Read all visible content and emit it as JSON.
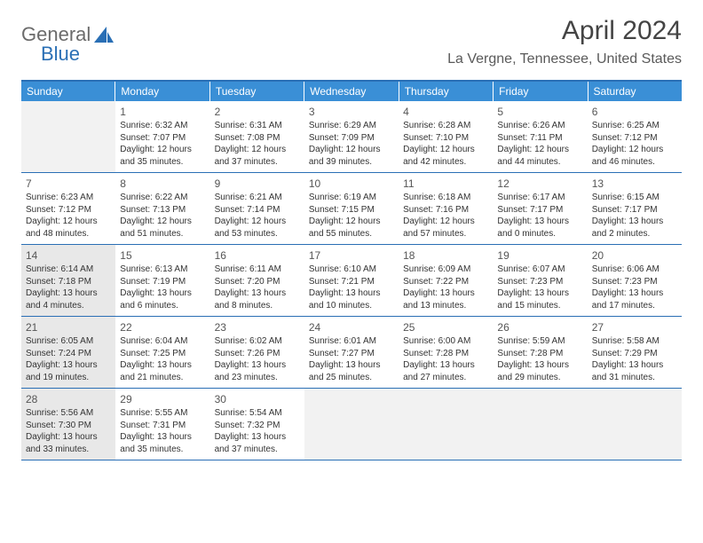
{
  "logo": {
    "part1": "General",
    "part2": "Blue"
  },
  "title": "April 2024",
  "location": "La Vergne, Tennessee, United States",
  "weekdays": [
    "Sunday",
    "Monday",
    "Tuesday",
    "Wednesday",
    "Thursday",
    "Friday",
    "Saturday"
  ],
  "colors": {
    "header_blue": "#3a8fd6",
    "border_blue": "#2a6fb5",
    "logo_gray": "#6b6b6b",
    "logo_blue": "#2a6fb5",
    "shaded": "#e8e8e8",
    "empty": "#f2f2f2",
    "text": "#333333"
  },
  "typography": {
    "title_fontsize": 30,
    "location_fontsize": 16,
    "weekday_fontsize": 12,
    "daynum_fontsize": 12,
    "body_fontsize": 10
  },
  "weeks": [
    [
      {
        "empty": true
      },
      {
        "n": "1",
        "sr": "6:32 AM",
        "ss": "7:07 PM",
        "dl1": "Daylight: 12 hours",
        "dl2": "and 35 minutes."
      },
      {
        "n": "2",
        "sr": "6:31 AM",
        "ss": "7:08 PM",
        "dl1": "Daylight: 12 hours",
        "dl2": "and 37 minutes."
      },
      {
        "n": "3",
        "sr": "6:29 AM",
        "ss": "7:09 PM",
        "dl1": "Daylight: 12 hours",
        "dl2": "and 39 minutes."
      },
      {
        "n": "4",
        "sr": "6:28 AM",
        "ss": "7:10 PM",
        "dl1": "Daylight: 12 hours",
        "dl2": "and 42 minutes."
      },
      {
        "n": "5",
        "sr": "6:26 AM",
        "ss": "7:11 PM",
        "dl1": "Daylight: 12 hours",
        "dl2": "and 44 minutes."
      },
      {
        "n": "6",
        "sr": "6:25 AM",
        "ss": "7:12 PM",
        "dl1": "Daylight: 12 hours",
        "dl2": "and 46 minutes."
      }
    ],
    [
      {
        "n": "7",
        "sr": "6:23 AM",
        "ss": "7:12 PM",
        "dl1": "Daylight: 12 hours",
        "dl2": "and 48 minutes."
      },
      {
        "n": "8",
        "sr": "6:22 AM",
        "ss": "7:13 PM",
        "dl1": "Daylight: 12 hours",
        "dl2": "and 51 minutes."
      },
      {
        "n": "9",
        "sr": "6:21 AM",
        "ss": "7:14 PM",
        "dl1": "Daylight: 12 hours",
        "dl2": "and 53 minutes."
      },
      {
        "n": "10",
        "sr": "6:19 AM",
        "ss": "7:15 PM",
        "dl1": "Daylight: 12 hours",
        "dl2": "and 55 minutes."
      },
      {
        "n": "11",
        "sr": "6:18 AM",
        "ss": "7:16 PM",
        "dl1": "Daylight: 12 hours",
        "dl2": "and 57 minutes."
      },
      {
        "n": "12",
        "sr": "6:17 AM",
        "ss": "7:17 PM",
        "dl1": "Daylight: 13 hours",
        "dl2": "and 0 minutes."
      },
      {
        "n": "13",
        "sr": "6:15 AM",
        "ss": "7:17 PM",
        "dl1": "Daylight: 13 hours",
        "dl2": "and 2 minutes."
      }
    ],
    [
      {
        "n": "14",
        "sr": "6:14 AM",
        "ss": "7:18 PM",
        "dl1": "Daylight: 13 hours",
        "dl2": "and 4 minutes.",
        "shaded": true
      },
      {
        "n": "15",
        "sr": "6:13 AM",
        "ss": "7:19 PM",
        "dl1": "Daylight: 13 hours",
        "dl2": "and 6 minutes."
      },
      {
        "n": "16",
        "sr": "6:11 AM",
        "ss": "7:20 PM",
        "dl1": "Daylight: 13 hours",
        "dl2": "and 8 minutes."
      },
      {
        "n": "17",
        "sr": "6:10 AM",
        "ss": "7:21 PM",
        "dl1": "Daylight: 13 hours",
        "dl2": "and 10 minutes."
      },
      {
        "n": "18",
        "sr": "6:09 AM",
        "ss": "7:22 PM",
        "dl1": "Daylight: 13 hours",
        "dl2": "and 13 minutes."
      },
      {
        "n": "19",
        "sr": "6:07 AM",
        "ss": "7:23 PM",
        "dl1": "Daylight: 13 hours",
        "dl2": "and 15 minutes."
      },
      {
        "n": "20",
        "sr": "6:06 AM",
        "ss": "7:23 PM",
        "dl1": "Daylight: 13 hours",
        "dl2": "and 17 minutes."
      }
    ],
    [
      {
        "n": "21",
        "sr": "6:05 AM",
        "ss": "7:24 PM",
        "dl1": "Daylight: 13 hours",
        "dl2": "and 19 minutes.",
        "shaded": true
      },
      {
        "n": "22",
        "sr": "6:04 AM",
        "ss": "7:25 PM",
        "dl1": "Daylight: 13 hours",
        "dl2": "and 21 minutes."
      },
      {
        "n": "23",
        "sr": "6:02 AM",
        "ss": "7:26 PM",
        "dl1": "Daylight: 13 hours",
        "dl2": "and 23 minutes."
      },
      {
        "n": "24",
        "sr": "6:01 AM",
        "ss": "7:27 PM",
        "dl1": "Daylight: 13 hours",
        "dl2": "and 25 minutes."
      },
      {
        "n": "25",
        "sr": "6:00 AM",
        "ss": "7:28 PM",
        "dl1": "Daylight: 13 hours",
        "dl2": "and 27 minutes."
      },
      {
        "n": "26",
        "sr": "5:59 AM",
        "ss": "7:28 PM",
        "dl1": "Daylight: 13 hours",
        "dl2": "and 29 minutes."
      },
      {
        "n": "27",
        "sr": "5:58 AM",
        "ss": "7:29 PM",
        "dl1": "Daylight: 13 hours",
        "dl2": "and 31 minutes."
      }
    ],
    [
      {
        "n": "28",
        "sr": "5:56 AM",
        "ss": "7:30 PM",
        "dl1": "Daylight: 13 hours",
        "dl2": "and 33 minutes.",
        "shaded": true
      },
      {
        "n": "29",
        "sr": "5:55 AM",
        "ss": "7:31 PM",
        "dl1": "Daylight: 13 hours",
        "dl2": "and 35 minutes."
      },
      {
        "n": "30",
        "sr": "5:54 AM",
        "ss": "7:32 PM",
        "dl1": "Daylight: 13 hours",
        "dl2": "and 37 minutes."
      },
      {
        "empty": true
      },
      {
        "empty": true
      },
      {
        "empty": true
      },
      {
        "empty": true
      }
    ]
  ]
}
